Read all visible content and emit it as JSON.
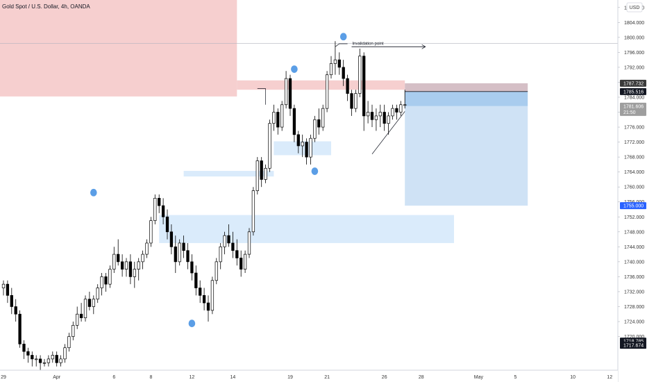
{
  "header": {
    "title": "Gold Spot / U.S. Dollar, 4h, OANDA",
    "currency": "USD"
  },
  "annotations": {
    "invalidation_label": "Invalidation point"
  },
  "price_tags": [
    {
      "label": "1787.732",
      "value": 1787.732,
      "bg": "#3a3a3a"
    },
    {
      "label": "1785.516",
      "value": 1785.516,
      "bg": "#131722"
    },
    {
      "label": "1781.606",
      "value": 1781.606,
      "bg": "#9e9e9e",
      "sub": "21:50"
    },
    {
      "label": "1755.000",
      "value": 1755.0,
      "bg": "#2962ff"
    },
    {
      "label": "1718.785",
      "value": 1718.785,
      "bg": "#131722"
    },
    {
      "label": "1717.674",
      "value": 1717.674,
      "bg": "#131722"
    }
  ],
  "colors": {
    "up": "#ffffff",
    "down": "#000000",
    "supply_zone": "#f6cccc",
    "demand_zone": "#d6e9fb",
    "target_zone": "#cfe2f5",
    "entry_zone": "#a9ccee",
    "stop_zone": "#d5bfc6",
    "marker": "#5b9ee6"
  },
  "chart_data": {
    "type": "candlestick",
    "title": "Gold Spot / U.S. Dollar, 4h, OANDA",
    "ylim": [
      1711,
      1810
    ],
    "y_ticks": [
      1720,
      1724,
      1728,
      1732,
      1736,
      1740,
      1744,
      1748,
      1752,
      1756,
      1760,
      1764,
      1768,
      1772,
      1776,
      1780,
      1784,
      1788,
      1792,
      1796,
      1800,
      1804,
      1808
    ],
    "y_tick_labels": [
      "1720.000",
      "1724.000",
      "1728.000",
      "1732.000",
      "1736.000",
      "1740.000",
      "1744.000",
      "1748.000",
      "1752.000",
      "1756.000",
      "1760.000",
      "1764.000",
      "1768.000",
      "1772.000",
      "1776.000",
      "1780.000",
      "1784.000",
      "1788.000",
      "1792.000",
      "1796.000",
      "1800.000",
      "1804.000",
      "1808.000"
    ],
    "x_labels": [
      "29",
      "Apr",
      "6",
      "8",
      "12",
      "14",
      "19",
      "21",
      "26",
      "28",
      "May",
      "5",
      "10",
      "12"
    ],
    "x_label_index": [
      0,
      13,
      27,
      36,
      46,
      56,
      70,
      79,
      93,
      102,
      116,
      125,
      139,
      148
    ],
    "last_candle_index": 98,
    "x_max_index": 152,
    "candles": [
      [
        1733,
        1735,
        1731,
        1734
      ],
      [
        1734,
        1735,
        1729,
        1731
      ],
      [
        1731,
        1733,
        1726,
        1728
      ],
      [
        1728,
        1730,
        1724,
        1726
      ],
      [
        1726,
        1727,
        1717,
        1718
      ],
      [
        1718,
        1719,
        1714,
        1716
      ],
      [
        1716,
        1717,
        1713,
        1715
      ],
      [
        1715,
        1716,
        1712,
        1714
      ],
      [
        1714,
        1715,
        1712,
        1714
      ],
      [
        1714,
        1715,
        1711,
        1713
      ],
      [
        1713,
        1714,
        1712,
        1713
      ],
      [
        1713,
        1715,
        1712,
        1714
      ],
      [
        1714,
        1716,
        1713,
        1715
      ],
      [
        1715,
        1716,
        1712,
        1713
      ],
      [
        1713,
        1715,
        1712,
        1714
      ],
      [
        1714,
        1718,
        1713,
        1717
      ],
      [
        1717,
        1721,
        1716,
        1720
      ],
      [
        1720,
        1724,
        1719,
        1723
      ],
      [
        1723,
        1728,
        1722,
        1726
      ],
      [
        1726,
        1729,
        1724,
        1725
      ],
      [
        1725,
        1731,
        1724,
        1730
      ],
      [
        1730,
        1732,
        1727,
        1728
      ],
      [
        1728,
        1731,
        1726,
        1730
      ],
      [
        1730,
        1734,
        1729,
        1733
      ],
      [
        1733,
        1737,
        1731,
        1736
      ],
      [
        1736,
        1737,
        1732,
        1734
      ],
      [
        1734,
        1739,
        1733,
        1738
      ],
      [
        1738,
        1744,
        1737,
        1742
      ],
      [
        1742,
        1746,
        1739,
        1740
      ],
      [
        1740,
        1742,
        1736,
        1738
      ],
      [
        1738,
        1741,
        1736,
        1740
      ],
      [
        1740,
        1742,
        1734,
        1736
      ],
      [
        1736,
        1740,
        1733,
        1738
      ],
      [
        1738,
        1741,
        1735,
        1740
      ],
      [
        1740,
        1743,
        1738,
        1742
      ],
      [
        1742,
        1746,
        1741,
        1745
      ],
      [
        1745,
        1752,
        1744,
        1751
      ],
      [
        1751,
        1758,
        1750,
        1757
      ],
      [
        1757,
        1758,
        1753,
        1755
      ],
      [
        1755,
        1757,
        1750,
        1752
      ],
      [
        1752,
        1754,
        1746,
        1748
      ],
      [
        1748,
        1750,
        1742,
        1744
      ],
      [
        1744,
        1747,
        1737,
        1740
      ],
      [
        1740,
        1746,
        1739,
        1745
      ],
      [
        1745,
        1747,
        1741,
        1743
      ],
      [
        1743,
        1745,
        1738,
        1740
      ],
      [
        1740,
        1742,
        1735,
        1737
      ],
      [
        1737,
        1739,
        1731,
        1733
      ],
      [
        1733,
        1735,
        1729,
        1731
      ],
      [
        1731,
        1733,
        1727,
        1729
      ],
      [
        1729,
        1731,
        1724,
        1727
      ],
      [
        1727,
        1736,
        1726,
        1735
      ],
      [
        1735,
        1741,
        1734,
        1740
      ],
      [
        1740,
        1745,
        1738,
        1744
      ],
      [
        1744,
        1748,
        1742,
        1747
      ],
      [
        1747,
        1750,
        1744,
        1745
      ],
      [
        1745,
        1748,
        1741,
        1743
      ],
      [
        1743,
        1746,
        1739,
        1741
      ],
      [
        1741,
        1743,
        1736,
        1738
      ],
      [
        1738,
        1743,
        1737,
        1742
      ],
      [
        1742,
        1749,
        1741,
        1748
      ],
      [
        1748,
        1760,
        1747,
        1759
      ],
      [
        1759,
        1768,
        1758,
        1767
      ],
      [
        1767,
        1768,
        1760,
        1762
      ],
      [
        1762,
        1766,
        1761,
        1765
      ],
      [
        1765,
        1778,
        1764,
        1777
      ],
      [
        1777,
        1782,
        1775,
        1780
      ],
      [
        1780,
        1781,
        1774,
        1776
      ],
      [
        1776,
        1783,
        1775,
        1782
      ],
      [
        1782,
        1791,
        1781,
        1789
      ],
      [
        1789,
        1790,
        1779,
        1781
      ],
      [
        1781,
        1782,
        1772,
        1774
      ],
      [
        1774,
        1775,
        1769,
        1771
      ],
      [
        1771,
        1774,
        1768,
        1772
      ],
      [
        1772,
        1773,
        1766,
        1768
      ],
      [
        1768,
        1774,
        1766,
        1773
      ],
      [
        1773,
        1779,
        1772,
        1778
      ],
      [
        1778,
        1781,
        1774,
        1776
      ],
      [
        1776,
        1782,
        1775,
        1781
      ],
      [
        1781,
        1791,
        1780,
        1790
      ],
      [
        1790,
        1795,
        1789,
        1793
      ],
      [
        1793,
        1799,
        1790,
        1794
      ],
      [
        1794,
        1796,
        1790,
        1792
      ],
      [
        1792,
        1794,
        1787,
        1789
      ],
      [
        1789,
        1790,
        1783,
        1785
      ],
      [
        1785,
        1786,
        1779,
        1781
      ],
      [
        1781,
        1786,
        1780,
        1785
      ],
      [
        1785,
        1797,
        1784,
        1795
      ],
      [
        1795,
        1796,
        1775,
        1779
      ],
      [
        1779,
        1783,
        1777,
        1780
      ],
      [
        1780,
        1782,
        1776,
        1778
      ],
      [
        1778,
        1781,
        1775,
        1779
      ],
      [
        1779,
        1782,
        1776,
        1780
      ],
      [
        1780,
        1782,
        1775,
        1777
      ],
      [
        1777,
        1780,
        1774,
        1779
      ],
      [
        1779,
        1782,
        1778,
        1781
      ],
      [
        1781,
        1782,
        1778,
        1780
      ],
      [
        1780,
        1783,
        1779,
        1782
      ],
      [
        1782,
        1786,
        1781,
        1782
      ]
    ],
    "zones": [
      {
        "name": "supply-zone",
        "i0": -1,
        "i1": 57,
        "y0": 1784.2,
        "y1": 1812
      },
      {
        "name": "supply-zone-extension",
        "i0": 57,
        "i1": 98,
        "y0": 1786.0,
        "y1": 1788.5
      },
      {
        "name": "demand-zone-upper",
        "i0": 66,
        "i1": 80,
        "y0": 1768.5,
        "y1": 1772.2
      },
      {
        "name": "demand-zone-mid",
        "i0": 44,
        "i1": 66,
        "y0": 1762.8,
        "y1": 1764.3
      },
      {
        "name": "demand-zone-lower",
        "i0": 38,
        "i1": 110,
        "y0": 1745.0,
        "y1": 1752.5
      }
    ],
    "position": {
      "i0": 98,
      "i1": 128,
      "entry": 1785.516,
      "stop": 1787.732,
      "target": 1755.0,
      "current": 1781.606
    },
    "swing_markers": [
      {
        "i": 22,
        "price": 1758.5
      },
      {
        "i": 46,
        "price": 1723.5
      },
      {
        "i": 71,
        "price": 1791.5
      },
      {
        "i": 76,
        "price": 1764.2
      },
      {
        "i": 83,
        "price": 1800.2
      }
    ],
    "invalidation": {
      "i0": 85,
      "i1": 103,
      "price": 1797.5
    },
    "crosshair_price": 1798.4
  }
}
